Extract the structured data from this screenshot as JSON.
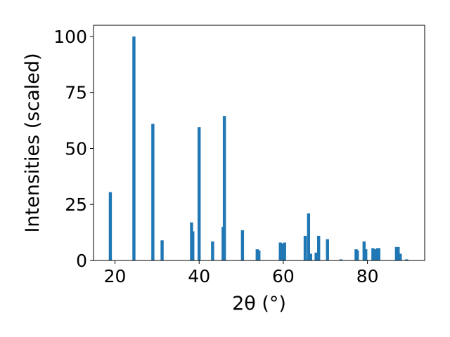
{
  "chart_data": {
    "type": "bar",
    "title": "",
    "xlabel": "2θ (°)",
    "ylabel": "Intensities (scaled)",
    "xlim": [
      14.9,
      93.6
    ],
    "ylim": [
      0,
      105
    ],
    "xticks": [
      20,
      40,
      60,
      80
    ],
    "yticks": [
      0,
      25,
      50,
      75,
      100
    ],
    "grid": false,
    "bar_color": "#1f77b4",
    "x": [
      18.9,
      24.5,
      29.0,
      31.2,
      38.2,
      38.5,
      40.0,
      43.2,
      45.7,
      46.0,
      50.3,
      53.8,
      54.2,
      59.3,
      59.8,
      60.3,
      65.2,
      66.0,
      66.5,
      67.8,
      68.4,
      70.5,
      73.7,
      77.3,
      77.6,
      79.2,
      79.6,
      81.3,
      81.7,
      82.4,
      82.7,
      86.9,
      87.3,
      87.8,
      89.3
    ],
    "values": [
      30.5,
      100,
      61,
      9,
      17,
      13,
      59.5,
      8.5,
      15,
      64.5,
      13.5,
      5,
      4.5,
      8,
      7.5,
      8,
      11,
      21,
      3,
      3.5,
      11,
      9.5,
      0.5,
      5,
      4.5,
      8.5,
      5,
      5.5,
      5,
      5.5,
      5.5,
      6,
      6,
      3,
      0.5
    ]
  }
}
